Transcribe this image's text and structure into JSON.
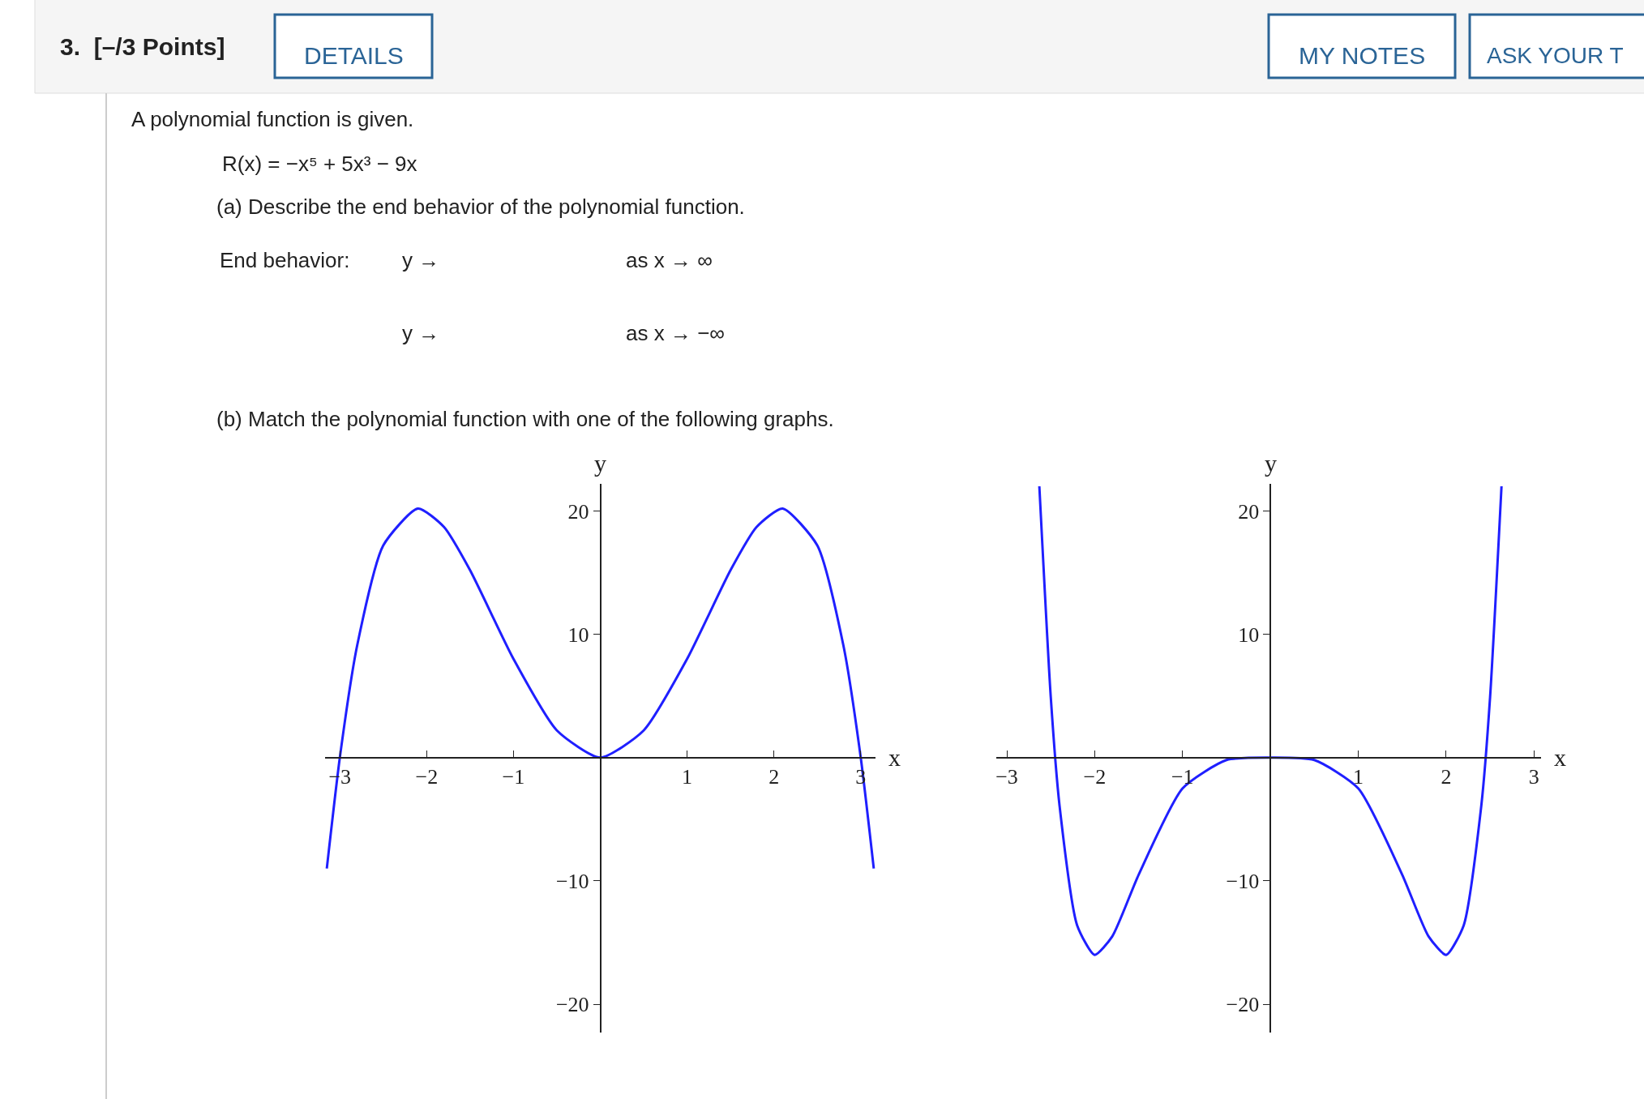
{
  "chart_data": [
    {
      "type": "line",
      "xlabel": "x",
      "ylabel": "y",
      "x": [
        -3.15,
        -3.0,
        -2.8,
        -2.5,
        -2.1,
        -1.8,
        -1.5,
        -1.0,
        -0.5,
        0,
        0.5,
        1.0,
        1.5,
        1.8,
        2.1,
        2.5,
        2.8,
        3.0,
        3.15
      ],
      "series": [
        {
          "color": "#1f1fff",
          "values": [
            -9,
            0,
            9.1,
            17.2,
            20.2,
            18.7,
            15.2,
            8,
            2.2,
            0,
            2.2,
            8,
            15.2,
            18.7,
            20.2,
            17.2,
            9.1,
            0,
            -9
          ]
        }
      ],
      "xlim": [
        -3.17,
        3.17
      ],
      "ylim": [
        -22.3,
        22.2
      ],
      "xticks": [
        -3,
        -2,
        -1,
        1,
        2,
        3
      ],
      "yticks": [
        -20,
        -10,
        10,
        20
      ],
      "marker": "none",
      "line_style": "solid",
      "annotations": [
        "3.  [–/3 Points]",
        "DETAILS",
        "MY NOTES",
        "ASK YOUR T",
        "A polynomial function is given.",
        "R(x) = −x⁵ + 5x³ − 9x",
        "(a) Describe the end behavior of the polynomial function.",
        "End behavior:",
        "y →",
        "as x → ∞",
        "y →",
        "as x → −∞",
        "(b) Match the polynomial function with one of the following graphs."
      ]
    },
    {
      "type": "line",
      "xlabel": "x",
      "ylabel": "y",
      "x": [
        -2.63,
        -2.5,
        -2.4,
        -2.2,
        -2.0,
        -1.8,
        -1.5,
        -1.0,
        -0.5,
        0,
        0.5,
        1.0,
        1.5,
        1.8,
        2.0,
        2.2,
        2.4,
        2.5,
        2.63
      ],
      "series": [
        {
          "color": "#1f1fff",
          "values": [
            22,
            4.9,
            -3.9,
            -13.6,
            -16,
            -14.5,
            -9.5,
            -2.5,
            -0.2,
            0,
            -0.2,
            -2.5,
            -9.5,
            -14.5,
            -16,
            -13.6,
            -3.9,
            4.9,
            22
          ]
        }
      ],
      "xlim": [
        -3.12,
        3.08
      ],
      "ylim": [
        -22.3,
        22.2
      ],
      "xticks": [
        -3,
        -2,
        -1,
        1,
        2,
        3
      ],
      "yticks": [
        -20,
        -10,
        10,
        20
      ],
      "marker": "none",
      "line_style": "solid"
    }
  ]
}
